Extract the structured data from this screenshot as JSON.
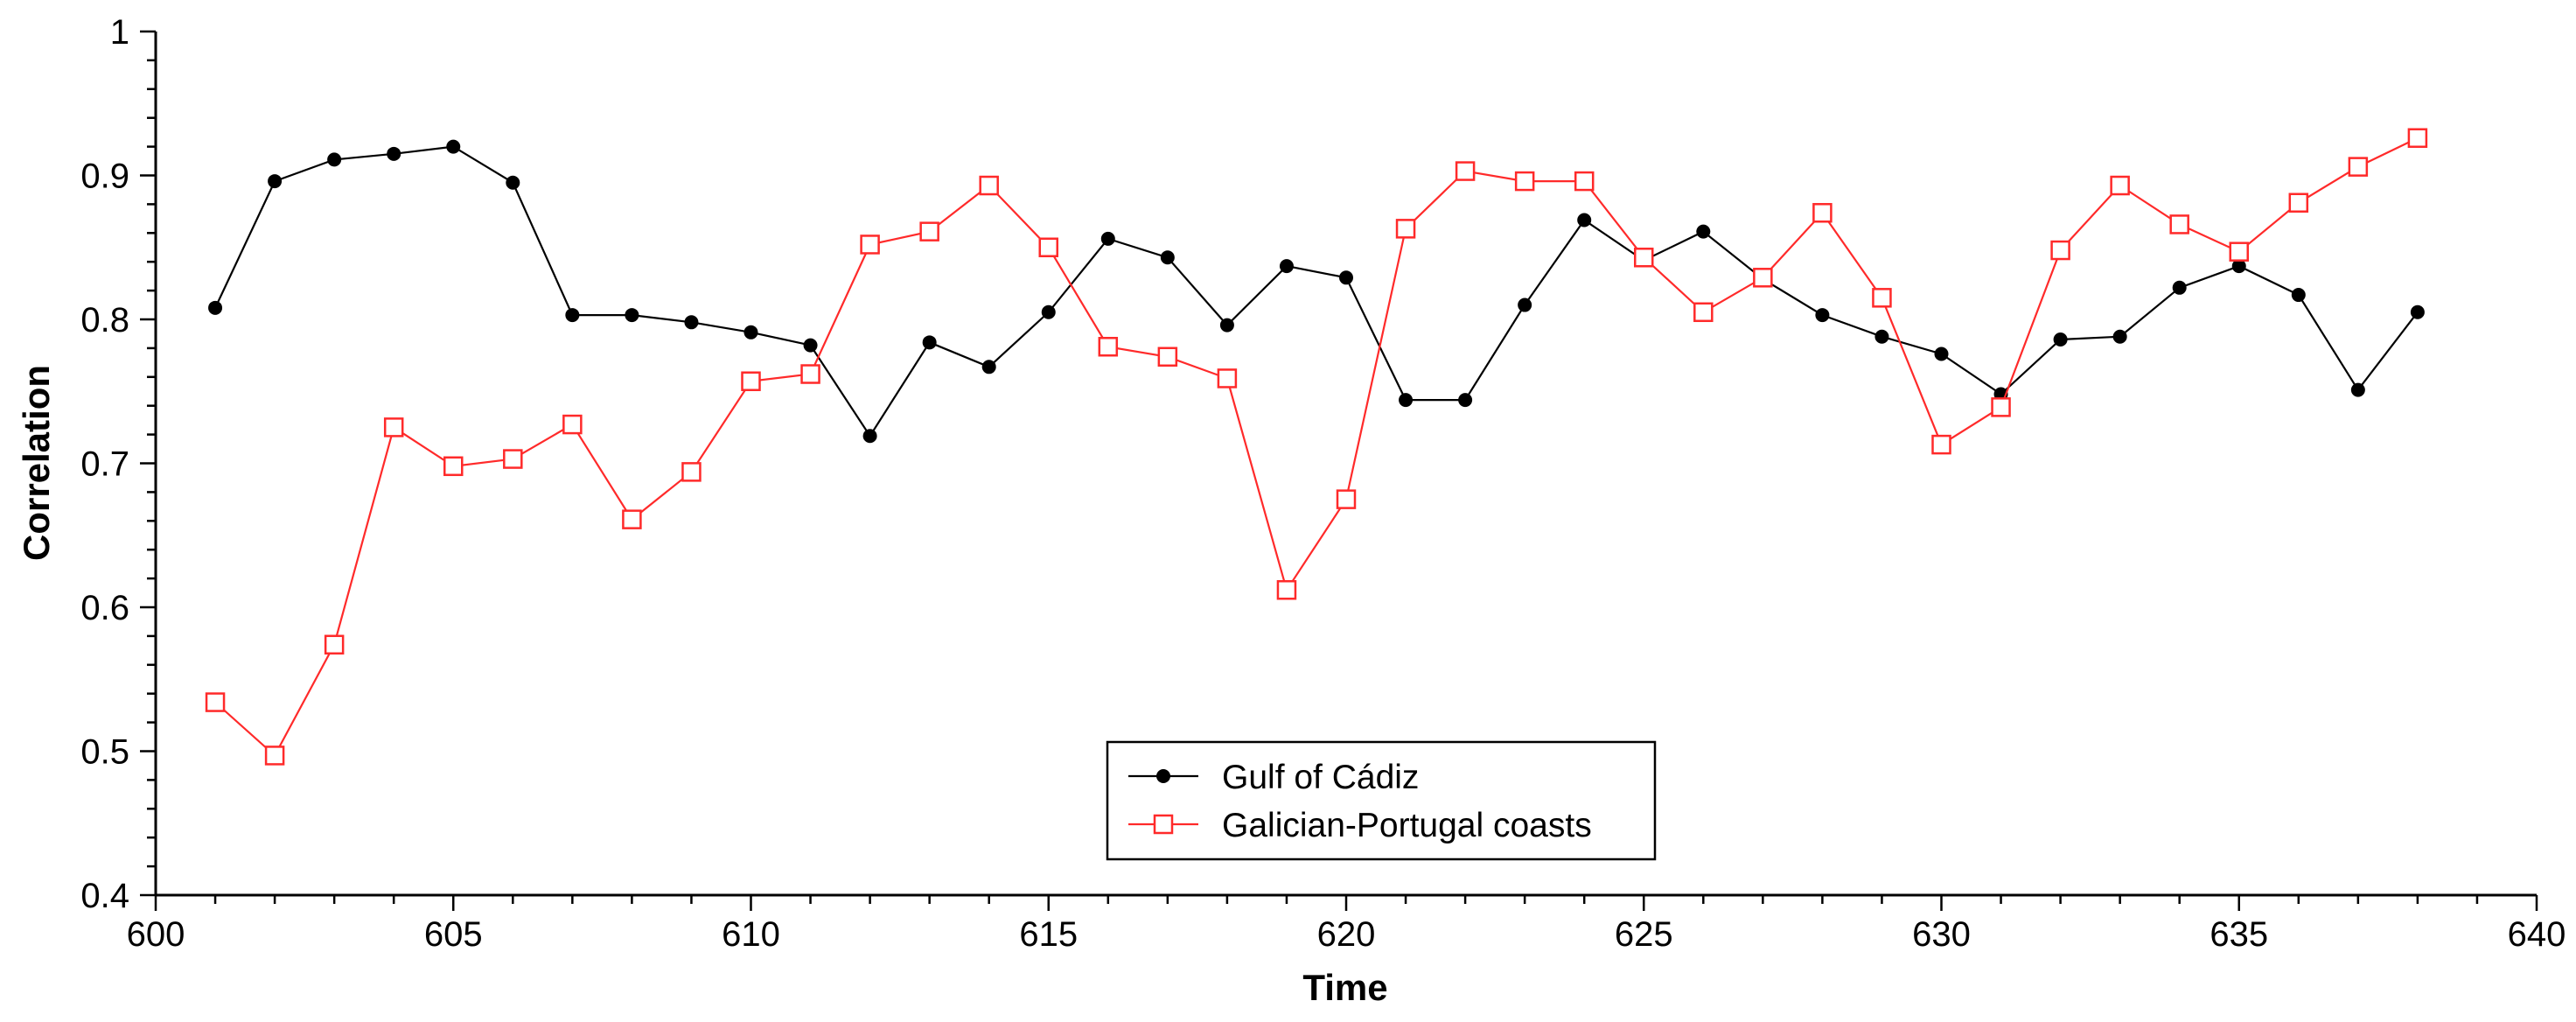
{
  "chart_data": {
    "type": "line",
    "title": "",
    "xlabel": "Time",
    "ylabel": "Correlation",
    "xlim": [
      600,
      640
    ],
    "ylim": [
      0.4,
      1
    ],
    "xticks": [
      600,
      605,
      610,
      615,
      620,
      625,
      630,
      635,
      640
    ],
    "yticks": [
      0.4,
      0.5,
      0.6,
      0.7,
      0.8,
      0.9,
      1
    ],
    "ytick_labels": [
      "0.4",
      "0.5",
      "0.6",
      "0.7",
      "0.8",
      "0.9",
      "1"
    ],
    "grid": false,
    "legend_position": "bottom-center",
    "x": [
      601,
      602,
      603,
      604,
      605,
      606,
      607,
      608,
      609,
      610,
      611,
      612,
      613,
      614,
      615,
      616,
      617,
      618,
      619,
      620,
      621,
      622,
      623,
      624,
      625,
      626,
      627,
      628,
      629,
      630,
      631,
      632,
      633,
      634,
      635,
      636,
      637,
      638
    ],
    "series": [
      {
        "name": "Gulf of Cádiz",
        "color": "#000000",
        "marker": "filled-circle",
        "values": [
          0.808,
          0.896,
          0.911,
          0.915,
          0.92,
          0.895,
          0.803,
          0.803,
          0.798,
          0.791,
          0.782,
          0.719,
          0.784,
          0.767,
          0.805,
          0.856,
          0.843,
          0.796,
          0.837,
          0.829,
          0.744,
          0.744,
          0.81,
          0.869,
          0.841,
          0.861,
          0.828,
          0.803,
          0.788,
          0.776,
          0.748,
          0.786,
          0.788,
          0.822,
          0.837,
          0.817,
          0.751,
          0.805
        ]
      },
      {
        "name": "Galician-Portugal coasts",
        "color": "#ff2a2a",
        "marker": "open-square",
        "values": [
          0.534,
          0.497,
          0.574,
          0.725,
          0.698,
          0.703,
          0.727,
          0.661,
          0.694,
          0.757,
          0.762,
          0.852,
          0.861,
          0.893,
          0.85,
          0.781,
          0.774,
          0.759,
          0.612,
          0.675,
          0.863,
          0.903,
          0.896,
          0.896,
          0.843,
          0.805,
          0.829,
          0.874,
          0.815,
          0.713,
          0.739,
          0.848,
          0.893,
          0.866,
          0.847,
          0.881,
          0.906,
          0.926
        ]
      }
    ]
  }
}
